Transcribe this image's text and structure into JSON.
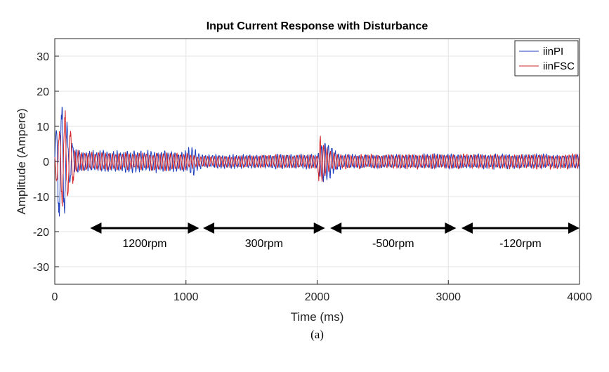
{
  "chart_data": {
    "type": "line",
    "title": "Input Current Response with Disturbance",
    "xlabel": "Time (ms)",
    "ylabel": "Amplitude (Ampere)",
    "caption": "(a)",
    "xlim": [
      0,
      4000
    ],
    "ylim": [
      -35,
      35
    ],
    "xticks": [
      0,
      1000,
      2000,
      3000,
      4000
    ],
    "yticks": [
      -30,
      -20,
      -10,
      0,
      10,
      20,
      30
    ],
    "grid": true,
    "legend_position": "top-right",
    "series": [
      {
        "name": "iinPI",
        "color": "#1f3fbf",
        "envelope": [
          [
            0,
            5
          ],
          [
            20,
            14
          ],
          [
            40,
            19
          ],
          [
            60,
            20
          ],
          [
            80,
            15
          ],
          [
            100,
            9
          ],
          [
            150,
            4
          ],
          [
            200,
            3
          ],
          [
            1000,
            3
          ],
          [
            1050,
            5
          ],
          [
            1100,
            2
          ],
          [
            2000,
            2
          ],
          [
            2030,
            5
          ],
          [
            2060,
            7
          ],
          [
            2100,
            5
          ],
          [
            2150,
            3
          ],
          [
            2200,
            2
          ],
          [
            4000,
            2
          ]
        ]
      },
      {
        "name": "iinFSC",
        "color": "#d62728",
        "envelope": [
          [
            0,
            4
          ],
          [
            30,
            9
          ],
          [
            50,
            12
          ],
          [
            70,
            17
          ],
          [
            90,
            12
          ],
          [
            110,
            12
          ],
          [
            150,
            4
          ],
          [
            200,
            2.5
          ],
          [
            1000,
            2.5
          ],
          [
            1050,
            2
          ],
          [
            1100,
            1.5
          ],
          [
            2000,
            2
          ],
          [
            2020,
            8
          ],
          [
            2050,
            5
          ],
          [
            2100,
            3
          ],
          [
            2150,
            2
          ],
          [
            4000,
            2
          ]
        ]
      }
    ],
    "annotations": [
      {
        "label": "1200rpm",
        "x_start": 270,
        "x_end": 1100,
        "y": -19
      },
      {
        "label": "300rpm",
        "x_start": 1130,
        "x_end": 2060,
        "y": -19
      },
      {
        "label": "-500rpm",
        "x_start": 2100,
        "x_end": 3060,
        "y": -19
      },
      {
        "label": "-120rpm",
        "x_start": 3100,
        "x_end": 4000,
        "y": -19
      }
    ]
  }
}
